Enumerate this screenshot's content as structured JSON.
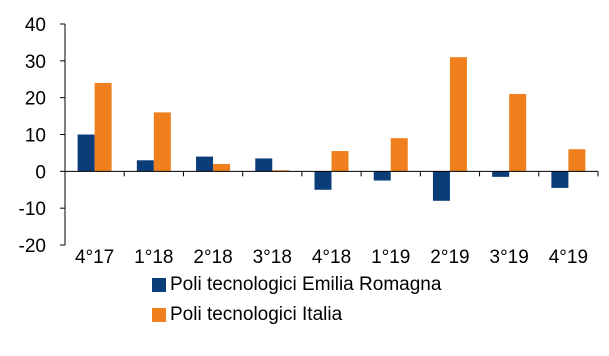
{
  "chart_data": {
    "type": "bar",
    "categories": [
      "4°17",
      "1°18",
      "2°18",
      "3°18",
      "4°18",
      "1°19",
      "2°19",
      "3°19",
      "4°19"
    ],
    "series": [
      {
        "name": "Poli tecnologici Emilia Romagna",
        "color": "#0b3d79",
        "values": [
          10,
          3,
          4,
          3.5,
          -5,
          -2.5,
          -8,
          -1.5,
          -4.5
        ]
      },
      {
        "name": "Poli tecnologici Italia",
        "color": "#f07f1e",
        "values": [
          24,
          16,
          2,
          0.3,
          5.5,
          9,
          31,
          21,
          6
        ]
      }
    ],
    "ylim": [
      -20,
      40
    ],
    "yticks": [
      -20,
      -10,
      0,
      10,
      20,
      30,
      40
    ],
    "grid": false,
    "legend": "bottom"
  }
}
